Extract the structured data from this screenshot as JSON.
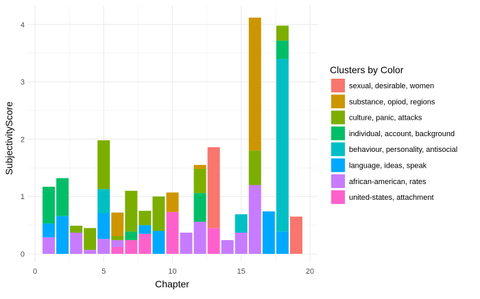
{
  "chart_data": {
    "type": "bar",
    "stacked": true,
    "title": "",
    "xlabel": "Chapter",
    "ylabel": "SubjectivityScore",
    "xlim": [
      -0.5,
      20
    ],
    "ylim": [
      -0.2,
      4.35
    ],
    "x_ticks": [
      0,
      5,
      10,
      15,
      20
    ],
    "y_ticks": [
      0,
      1,
      2,
      3,
      4
    ],
    "grid": true,
    "legend_position": "right",
    "legend_title": "Clusters by Color",
    "series": [
      {
        "name": "sexual, desirable, women",
        "color": "#F8766D",
        "points": [
          {
            "x": 13,
            "y": 1.41
          },
          {
            "x": 19,
            "y": 0.65
          }
        ]
      },
      {
        "name": "substance, opiod, regions",
        "color": "#CD9600",
        "points": [
          {
            "x": 6,
            "y": 0.41
          },
          {
            "x": 10,
            "y": 0.34
          },
          {
            "x": 12,
            "y": 0.07
          },
          {
            "x": 16,
            "y": 2.32
          }
        ]
      },
      {
        "name": "culture, panic, attacks",
        "color": "#7CAE00",
        "points": [
          {
            "x": 1,
            "y": 0.0
          },
          {
            "x": 3,
            "y": 0.12
          },
          {
            "x": 4,
            "y": 0.38
          },
          {
            "x": 5,
            "y": 0.85
          },
          {
            "x": 6,
            "y": 0.07
          },
          {
            "x": 7,
            "y": 0.71
          },
          {
            "x": 8,
            "y": 0.25
          },
          {
            "x": 9,
            "y": 0.6
          },
          {
            "x": 12,
            "y": 0.42
          },
          {
            "x": 16,
            "y": 0.6
          },
          {
            "x": 18,
            "y": 0.26
          }
        ]
      },
      {
        "name": "individual, account, background",
        "color": "#00BE67",
        "points": [
          {
            "x": 1,
            "y": 0.64
          },
          {
            "x": 2,
            "y": 0.66
          },
          {
            "x": 7,
            "y": 0.15
          },
          {
            "x": 12,
            "y": 0.5
          },
          {
            "x": 18,
            "y": 0.32
          }
        ]
      },
      {
        "name": "behaviour, personality, antisocial",
        "color": "#00BFC4",
        "points": [
          {
            "x": 5,
            "y": 0.42
          },
          {
            "x": 15,
            "y": 0.32
          },
          {
            "x": 18,
            "y": 3.01
          }
        ]
      },
      {
        "name": "language, ideas, speak",
        "color": "#00A9FF",
        "points": [
          {
            "x": 1,
            "y": 0.24
          },
          {
            "x": 2,
            "y": 0.66
          },
          {
            "x": 5,
            "y": 0.45
          },
          {
            "x": 8,
            "y": 0.15
          },
          {
            "x": 9,
            "y": 0.4
          },
          {
            "x": 17,
            "y": 0.74
          },
          {
            "x": 18,
            "y": 0.39
          }
        ]
      },
      {
        "name": "african-american, rates",
        "color": "#C77CFF",
        "points": [
          {
            "x": 1,
            "y": 0.29
          },
          {
            "x": 3,
            "y": 0.37
          },
          {
            "x": 4,
            "y": 0.07
          },
          {
            "x": 5,
            "y": 0.26
          },
          {
            "x": 6,
            "y": 0.12
          },
          {
            "x": 7,
            "y": 0.0
          },
          {
            "x": 11,
            "y": 0.37
          },
          {
            "x": 12,
            "y": 0.56
          },
          {
            "x": 14,
            "y": 0.24
          },
          {
            "x": 15,
            "y": 0.37
          },
          {
            "x": 16,
            "y": 1.2
          }
        ]
      },
      {
        "name": "united-states, attachment",
        "color": "#FF61CC",
        "points": [
          {
            "x": 6,
            "y": 0.12
          },
          {
            "x": 7,
            "y": 0.24
          },
          {
            "x": 8,
            "y": 0.35
          },
          {
            "x": 10,
            "y": 0.73
          },
          {
            "x": 13,
            "y": 0.45
          }
        ]
      }
    ]
  }
}
